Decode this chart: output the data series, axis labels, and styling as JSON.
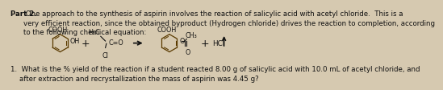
{
  "title_bold": "Part 2.",
  "title_text": " One approach to the synthesis of aspirin involves the reaction of salicylic acid with acetyl chloride.  This is a\nvery efficient reaction, since the obtained byproduct (Hydrogen chloride) drives the reaction to completion, according\nto the following chemical equation:",
  "question": "1.  What is the % yield of the reaction if a student reacted 8.00 g of salicylic acid with 10.0 mL of acetyl chloride, and\n    after extraction and recrystallization the mass of aspirin was 4.45 g?",
  "bg_color": "#d6c9b0",
  "text_color": "#111111",
  "ring_color": "#5a3a00",
  "font_size_main": 6.2,
  "font_size_chem": 5.8
}
